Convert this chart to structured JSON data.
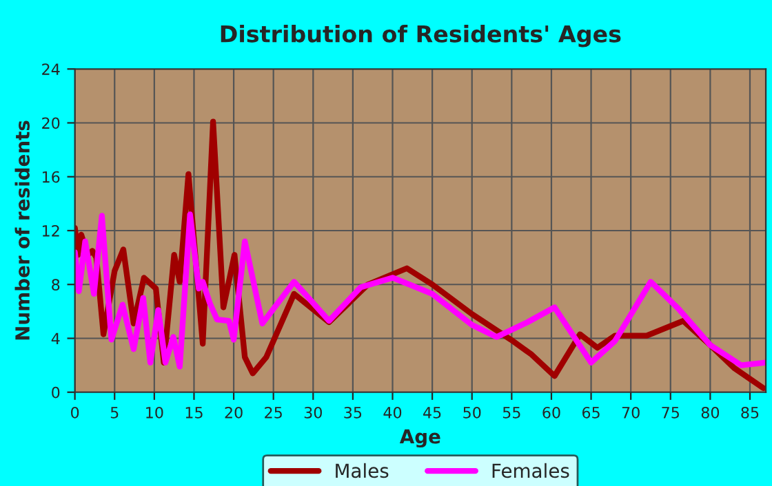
{
  "chart_data": {
    "type": "line",
    "title": "Distribution of Residents' Ages",
    "xlabel": "Age",
    "ylabel": "Number of residents",
    "xlim": [
      0,
      87
    ],
    "xticks": [
      0,
      5,
      10,
      15,
      20,
      25,
      30,
      35,
      40,
      45,
      50,
      55,
      60,
      65,
      70,
      75,
      80,
      85
    ],
    "ylim": [
      0,
      24
    ],
    "yticks": [
      0,
      4,
      8,
      12,
      16,
      20,
      24
    ],
    "grid": true,
    "legend": "bottom",
    "line_style": "solid",
    "series": [
      {
        "name": "Males",
        "color": "#a00000",
        "x": [
          0,
          0.4,
          0.8,
          1.6,
          2.2,
          2.7,
          3.6,
          5,
          6.1,
          7.4,
          8.7,
          10.2,
          11.2,
          12.5,
          13.2,
          14.3,
          16.1,
          17.4,
          18.7,
          20.1,
          21.4,
          22.4,
          24.1,
          27.6,
          32,
          36.9,
          41.8,
          45,
          50,
          54.9,
          57.5,
          60.4,
          63.6,
          65.8,
          68,
          72,
          76.6,
          80,
          83,
          86.7
        ],
        "values": [
          12.2,
          10.2,
          11.7,
          10.2,
          10.5,
          10,
          4.3,
          9,
          10.6,
          5.1,
          8.5,
          7.7,
          2.2,
          10.2,
          8.2,
          16.2,
          3.6,
          20.1,
          6.3,
          10.2,
          2.6,
          1.4,
          2.6,
          7.3,
          5.2,
          8,
          9.2,
          8,
          5.8,
          3.9,
          2.8,
          1.2,
          4.3,
          3.3,
          4.2,
          4.2,
          5.3,
          3.5,
          1.8,
          0.3
        ]
      },
      {
        "name": "Females",
        "color": "#ff00ff",
        "x": [
          0,
          0.5,
          1.3,
          2.4,
          3.4,
          4.6,
          6,
          7.4,
          8.6,
          9.5,
          10.5,
          11.4,
          12.4,
          13.2,
          14.5,
          15.6,
          16.1,
          17,
          17.9,
          19.4,
          20,
          21.4,
          23.6,
          27.6,
          32,
          36,
          40,
          45,
          50,
          53.1,
          57,
          60.4,
          65,
          68,
          72.5,
          76,
          80,
          83.9,
          87
        ],
        "values": [
          10.4,
          7.5,
          11.2,
          7.3,
          13.1,
          3.9,
          6.5,
          3.2,
          7,
          2.2,
          6.1,
          2.2,
          4.1,
          1.9,
          13.2,
          7.7,
          8.2,
          6.6,
          5.4,
          5.3,
          3.9,
          11.2,
          5.1,
          8.2,
          5.3,
          7.8,
          8.5,
          7.3,
          5,
          4.1,
          5.2,
          6.3,
          2.2,
          3.8,
          8.2,
          6.2,
          3.5,
          2,
          2.2
        ]
      }
    ]
  }
}
